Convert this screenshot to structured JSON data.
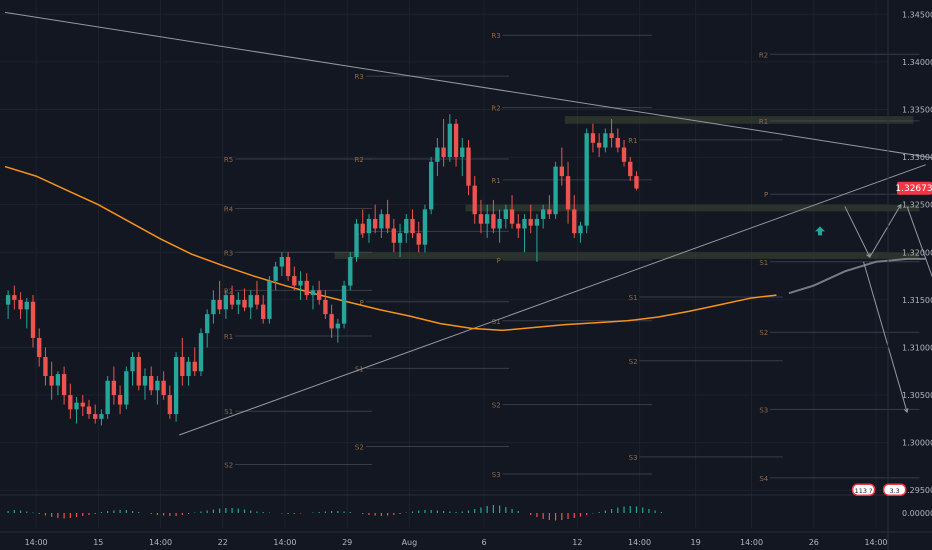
{
  "chart_data": {
    "type": "candlestick",
    "title": "",
    "symbol_price_badge": "1.32673",
    "colors": {
      "background": "#131722",
      "up": "#26a69a",
      "down": "#ef5350",
      "ma": "#f7931a",
      "grid": "#1e222d",
      "pivot_line": "#4a4f5a",
      "pivot_label": "#8a6a4a",
      "zone": "#3c4a33",
      "price_badge": "#f23645",
      "arrow": "#26a69a"
    },
    "y_axis": {
      "range": [
        1.2945,
        1.3465
      ],
      "ticks": [
        "1.34500",
        "1.34000",
        "1.33500",
        "1.33000",
        "1.32500",
        "1.32000",
        "1.31500",
        "1.31000",
        "1.30500",
        "1.30000",
        "1.29500"
      ],
      "tick_values": [
        1.345,
        1.34,
        1.335,
        1.33,
        1.325,
        1.32,
        1.315,
        1.31,
        1.305,
        1.3,
        1.295
      ]
    },
    "x_axis": {
      "range_bars": [
        0,
        140
      ],
      "ticks": [
        {
          "label": "14:00",
          "bar": 5
        },
        {
          "label": "15",
          "bar": 15
        },
        {
          "label": "14:00",
          "bar": 25
        },
        {
          "label": "22",
          "bar": 35
        },
        {
          "label": "14:00",
          "bar": 45
        },
        {
          "label": "29",
          "bar": 55
        },
        {
          "label": "Aug",
          "bar": 65
        },
        {
          "label": "6",
          "bar": 77
        },
        {
          "label": "12",
          "bar": 92
        },
        {
          "label": "14:00",
          "bar": 102
        },
        {
          "label": "19",
          "bar": 111
        },
        {
          "label": "14:00",
          "bar": 120
        },
        {
          "label": "26",
          "bar": 130
        },
        {
          "label": "14:00",
          "bar": 140
        }
      ]
    },
    "oscillator": {
      "zero_label": "0.00000",
      "values": [
        0.2,
        0.3,
        0.25,
        0.15,
        0.05,
        -0.1,
        -0.25,
        -0.4,
        -0.5,
        -0.55,
        -0.5,
        -0.4,
        -0.3,
        -0.2,
        -0.1,
        0.1,
        0.2,
        0.25,
        0.3,
        0.3,
        0.2,
        0.1,
        0.0,
        -0.1,
        -0.2,
        -0.25,
        -0.3,
        -0.3,
        -0.2,
        -0.1,
        0.05,
        0.15,
        0.25,
        0.35,
        0.45,
        0.5,
        0.5,
        0.45,
        0.35,
        0.25,
        0.15,
        0.1,
        0.05,
        0.0,
        -0.05,
        -0.1,
        -0.1,
        -0.05,
        0.0,
        0.05,
        0.1,
        0.15,
        0.2,
        0.2,
        0.15,
        0.1,
        0.0,
        -0.1,
        -0.2,
        -0.25,
        -0.3,
        -0.25,
        -0.2,
        -0.1,
        0.05,
        0.15,
        0.25,
        0.3,
        0.3,
        0.25,
        0.2,
        0.15,
        0.1,
        0.15,
        0.25,
        0.4,
        0.55,
        0.7,
        0.8,
        0.75,
        0.6,
        0.4,
        0.2,
        0.0,
        -0.2,
        -0.4,
        -0.6,
        -0.7,
        -0.75,
        -0.7,
        -0.6,
        -0.5,
        -0.35,
        -0.2,
        -0.05,
        0.1,
        0.25,
        0.4,
        0.55,
        0.65,
        0.7,
        0.65,
        0.55,
        0.4,
        0.25,
        0.1
      ]
    },
    "candles": [
      [
        1.3145,
        1.316,
        1.313,
        1.3155
      ],
      [
        1.3155,
        1.3165,
        1.314,
        1.315
      ],
      [
        1.315,
        1.3158,
        1.313,
        1.314
      ],
      [
        1.314,
        1.3152,
        1.312,
        1.3148
      ],
      [
        1.3148,
        1.3155,
        1.31,
        1.311
      ],
      [
        1.311,
        1.312,
        1.308,
        1.309
      ],
      [
        1.309,
        1.31,
        1.306,
        1.307
      ],
      [
        1.307,
        1.3085,
        1.3045,
        1.306
      ],
      [
        1.306,
        1.3075,
        1.305,
        1.3072
      ],
      [
        1.3072,
        1.308,
        1.304,
        1.305
      ],
      [
        1.305,
        1.3062,
        1.3025,
        1.3035
      ],
      [
        1.3035,
        1.3048,
        1.302,
        1.3042
      ],
      [
        1.3042,
        1.305,
        1.3028,
        1.3038
      ],
      [
        1.3038,
        1.3045,
        1.3025,
        1.303
      ],
      [
        1.303,
        1.304,
        1.302,
        1.3025
      ],
      [
        1.3025,
        1.3035,
        1.3018,
        1.303
      ],
      [
        1.303,
        1.307,
        1.3025,
        1.3065
      ],
      [
        1.3065,
        1.308,
        1.304,
        1.305
      ],
      [
        1.305,
        1.306,
        1.303,
        1.304
      ],
      [
        1.304,
        1.308,
        1.3035,
        1.3075
      ],
      [
        1.3075,
        1.3095,
        1.306,
        1.309
      ],
      [
        1.309,
        1.3095,
        1.3055,
        1.306
      ],
      [
        1.306,
        1.3078,
        1.3045,
        1.307
      ],
      [
        1.307,
        1.308,
        1.305,
        1.3055
      ],
      [
        1.3055,
        1.307,
        1.304,
        1.3065
      ],
      [
        1.3065,
        1.3075,
        1.3045,
        1.305
      ],
      [
        1.305,
        1.306,
        1.3025,
        1.303
      ],
      [
        1.303,
        1.3095,
        1.3022,
        1.309
      ],
      [
        1.309,
        1.311,
        1.306,
        1.307
      ],
      [
        1.307,
        1.309,
        1.306,
        1.3085
      ],
      [
        1.3085,
        1.31,
        1.307,
        1.3075
      ],
      [
        1.3075,
        1.312,
        1.307,
        1.3115
      ],
      [
        1.3115,
        1.314,
        1.31,
        1.3135
      ],
      [
        1.3135,
        1.316,
        1.3125,
        1.315
      ],
      [
        1.315,
        1.317,
        1.3135,
        1.314
      ],
      [
        1.314,
        1.316,
        1.313,
        1.3155
      ],
      [
        1.3155,
        1.3165,
        1.314,
        1.3145
      ],
      [
        1.3145,
        1.3158,
        1.3135,
        1.315
      ],
      [
        1.315,
        1.3162,
        1.3138,
        1.3142
      ],
      [
        1.3142,
        1.316,
        1.313,
        1.3155
      ],
      [
        1.3155,
        1.317,
        1.314,
        1.3145
      ],
      [
        1.3145,
        1.3155,
        1.3125,
        1.313
      ],
      [
        1.313,
        1.3175,
        1.3125,
        1.317
      ],
      [
        1.317,
        1.319,
        1.316,
        1.3185
      ],
      [
        1.3185,
        1.32,
        1.3175,
        1.3195
      ],
      [
        1.3195,
        1.32,
        1.317,
        1.3175
      ],
      [
        1.3175,
        1.3185,
        1.316,
        1.3165
      ],
      [
        1.3165,
        1.318,
        1.315,
        1.317
      ],
      [
        1.317,
        1.3178,
        1.315,
        1.3155
      ],
      [
        1.3155,
        1.3165,
        1.314,
        1.316
      ],
      [
        1.316,
        1.317,
        1.3145,
        1.315
      ],
      [
        1.315,
        1.316,
        1.313,
        1.3135
      ],
      [
        1.3135,
        1.3145,
        1.311,
        1.312
      ],
      [
        1.312,
        1.313,
        1.3105,
        1.3125
      ],
      [
        1.3125,
        1.317,
        1.312,
        1.3165
      ],
      [
        1.3165,
        1.32,
        1.316,
        1.3195
      ],
      [
        1.3195,
        1.3235,
        1.319,
        1.323
      ],
      [
        1.323,
        1.3245,
        1.3215,
        1.322
      ],
      [
        1.322,
        1.324,
        1.321,
        1.3235
      ],
      [
        1.3235,
        1.325,
        1.322,
        1.3225
      ],
      [
        1.3225,
        1.3245,
        1.3215,
        1.324
      ],
      [
        1.324,
        1.3255,
        1.322,
        1.3225
      ],
      [
        1.3225,
        1.3235,
        1.32,
        1.321
      ],
      [
        1.321,
        1.323,
        1.3195,
        1.322
      ],
      [
        1.322,
        1.324,
        1.321,
        1.3235
      ],
      [
        1.3235,
        1.3245,
        1.3215,
        1.322
      ],
      [
        1.322,
        1.3232,
        1.32,
        1.3208
      ],
      [
        1.3208,
        1.325,
        1.32,
        1.3245
      ],
      [
        1.3245,
        1.33,
        1.324,
        1.3295
      ],
      [
        1.3295,
        1.332,
        1.328,
        1.331
      ],
      [
        1.331,
        1.334,
        1.329,
        1.33
      ],
      [
        1.33,
        1.3345,
        1.3295,
        1.3335
      ],
      [
        1.3335,
        1.334,
        1.329,
        1.33
      ],
      [
        1.33,
        1.332,
        1.328,
        1.331
      ],
      [
        1.331,
        1.3318,
        1.326,
        1.327
      ],
      [
        1.327,
        1.328,
        1.323,
        1.324
      ],
      [
        1.324,
        1.3255,
        1.322,
        1.323
      ],
      [
        1.323,
        1.325,
        1.3215,
        1.324
      ],
      [
        1.324,
        1.3255,
        1.322,
        1.3225
      ],
      [
        1.3225,
        1.3245,
        1.321,
        1.3235
      ],
      [
        1.3235,
        1.325,
        1.3225,
        1.3245
      ],
      [
        1.3245,
        1.326,
        1.3225,
        1.323
      ],
      [
        1.323,
        1.324,
        1.3215,
        1.3225
      ],
      [
        1.3225,
        1.324,
        1.32,
        1.3235
      ],
      [
        1.3235,
        1.325,
        1.322,
        1.3228
      ],
      [
        1.3228,
        1.324,
        1.319,
        1.3235
      ],
      [
        1.3235,
        1.325,
        1.3225,
        1.3245
      ],
      [
        1.3245,
        1.326,
        1.3235,
        1.324
      ],
      [
        1.324,
        1.3295,
        1.3235,
        1.329
      ],
      [
        1.329,
        1.331,
        1.327,
        1.328
      ],
      [
        1.328,
        1.3295,
        1.323,
        1.3245
      ],
      [
        1.3245,
        1.326,
        1.3215,
        1.322
      ],
      [
        1.322,
        1.3232,
        1.321,
        1.3228
      ],
      [
        1.3228,
        1.333,
        1.322,
        1.3325
      ],
      [
        1.3325,
        1.3335,
        1.3305,
        1.3315
      ],
      [
        1.3315,
        1.3325,
        1.33,
        1.331
      ],
      [
        1.331,
        1.333,
        1.3305,
        1.3325
      ],
      [
        1.3325,
        1.334,
        1.331,
        1.332
      ],
      [
        1.332,
        1.333,
        1.3305,
        1.331
      ],
      [
        1.331,
        1.3318,
        1.329,
        1.3295
      ],
      [
        1.3295,
        1.33,
        1.3275,
        1.328
      ],
      [
        1.328,
        1.3285,
        1.3265,
        1.3267
      ]
    ],
    "moving_average": [
      [
        0,
        1.329
      ],
      [
        5,
        1.328
      ],
      [
        10,
        1.3265
      ],
      [
        15,
        1.325
      ],
      [
        20,
        1.3232
      ],
      [
        25,
        1.3214
      ],
      [
        30,
        1.3198
      ],
      [
        35,
        1.3186
      ],
      [
        40,
        1.3175
      ],
      [
        45,
        1.3165
      ],
      [
        50,
        1.3156
      ],
      [
        55,
        1.3148
      ],
      [
        60,
        1.314
      ],
      [
        65,
        1.3133
      ],
      [
        70,
        1.3125
      ],
      [
        75,
        1.312
      ],
      [
        80,
        1.3118
      ],
      [
        85,
        1.3121
      ],
      [
        90,
        1.3124
      ],
      [
        95,
        1.3126
      ],
      [
        100,
        1.3128
      ],
      [
        105,
        1.3132
      ],
      [
        110,
        1.3138
      ],
      [
        115,
        1.3145
      ],
      [
        120,
        1.3152
      ],
      [
        124,
        1.3155
      ]
    ],
    "trendlines": [
      {
        "from": [
          0,
          1.3452
        ],
        "to": [
          158,
          1.329
        ]
      },
      {
        "from": [
          28,
          1.3008
        ],
        "to": [
          148,
          1.3292
        ]
      }
    ],
    "projection_line": [
      [
        126,
        1.3157
      ],
      [
        130,
        1.3165
      ],
      [
        135,
        1.318
      ],
      [
        140,
        1.319
      ],
      [
        145,
        1.3193
      ],
      [
        148,
        1.3193
      ]
    ],
    "projection_arrows": [
      {
        "from": [
          135,
          1.3248
        ],
        "to": [
          139,
          1.3195
        ]
      },
      {
        "from": [
          139,
          1.3195
        ],
        "to": [
          144,
          1.325
        ]
      },
      {
        "from": [
          138,
          1.319
        ],
        "to": [
          145,
          1.3032
        ]
      },
      {
        "from": [
          145,
          1.3248
        ],
        "to": [
          153,
          1.3102
        ]
      }
    ],
    "zones": [
      {
        "from_bar": 90,
        "to_bar": 146,
        "low": 1.3335,
        "high": 1.3343
      },
      {
        "from_bar": 74,
        "to_bar": 147,
        "low": 1.3243,
        "high": 1.325
      },
      {
        "from_bar": 53,
        "to_bar": 147,
        "low": 1.3193,
        "high": 1.32
      }
    ],
    "pivot_sets": [
      {
        "from_bar": 37,
        "to_bar": 59,
        "levels": [
          [
            "R5",
            1.3298
          ],
          [
            "R4",
            1.3246
          ],
          [
            "R3",
            1.32
          ],
          [
            "R2",
            1.316
          ],
          [
            "R1",
            1.3112
          ],
          [
            "S1",
            1.3033
          ],
          [
            "S2",
            1.2977
          ]
        ]
      },
      {
        "from_bar": 58,
        "to_bar": 81,
        "levels": [
          [
            "R3",
            1.3385
          ],
          [
            "R2",
            1.3298
          ],
          [
            "R1",
            1.3222
          ],
          [
            "P",
            1.3148
          ],
          [
            "S1",
            1.3078
          ],
          [
            "S2",
            1.2996
          ]
        ]
      },
      {
        "from_bar": 80,
        "to_bar": 104,
        "levels": [
          [
            "R3",
            1.3428
          ],
          [
            "R2",
            1.3352
          ],
          [
            "R1",
            1.3276
          ],
          [
            "P",
            1.3192
          ],
          [
            "S1",
            1.3128
          ],
          [
            "S2",
            1.304
          ],
          [
            "S3",
            1.2967
          ]
        ]
      },
      {
        "from_bar": 102,
        "to_bar": 125,
        "levels": [
          [
            "R1",
            1.3318
          ],
          [
            "S1",
            1.3153
          ],
          [
            "S2",
            1.3086
          ],
          [
            "S3",
            1.2985
          ]
        ]
      },
      {
        "from_bar": 123,
        "to_bar": 147,
        "levels": [
          [
            "R2",
            1.3408
          ],
          [
            "R1",
            1.3338
          ],
          [
            "P",
            1.3261
          ],
          [
            "S1",
            1.319
          ],
          [
            "S2",
            1.3116
          ],
          [
            "S3",
            1.3035
          ],
          [
            "S4",
            1.2963
          ]
        ]
      }
    ],
    "signal_arrow": {
      "bar": 131,
      "price": 1.3222
    },
    "badges": [
      {
        "label": "113 ?",
        "bar": 138,
        "price": 1.295
      },
      {
        "label": "3.3",
        "bar": 143,
        "price": 1.295
      }
    ]
  }
}
